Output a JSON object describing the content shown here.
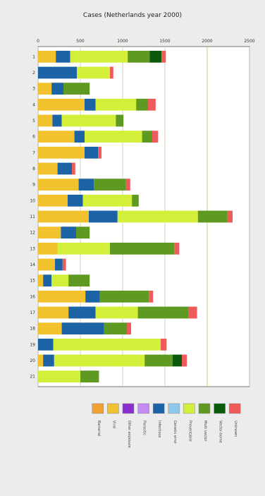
{
  "chart_data": {
    "type": "bar",
    "stacked": true,
    "orientation": "horizontal",
    "title": "Cases (Netherlands year 2000)",
    "xlim": [
      0,
      2500
    ],
    "x_ticks": [
      0,
      500,
      1000,
      1500,
      2000,
      2500
    ],
    "grid": true,
    "categories": [
      "1",
      "2",
      "3",
      "4",
      "5",
      "6",
      "7",
      "8",
      "9",
      "10",
      "11",
      "12",
      "13",
      "14",
      "15",
      "16",
      "17",
      "18",
      "19",
      "20",
      "21"
    ],
    "series": [
      {
        "name": "Bacterial",
        "color": "#f2a032",
        "values": [
          0,
          0,
          0,
          0,
          0,
          0,
          0,
          0,
          0,
          0,
          0,
          0,
          0,
          0,
          0,
          0,
          0,
          0,
          0,
          0,
          0
        ]
      },
      {
        "name": "Viral",
        "color": "#f2c12e",
        "values": [
          210,
          0,
          160,
          550,
          170,
          430,
          550,
          230,
          480,
          350,
          600,
          270,
          230,
          200,
          60,
          560,
          360,
          280,
          0,
          60,
          0
        ]
      },
      {
        "name": "Other exposure",
        "color": "#8b2fcf",
        "values": [
          0,
          0,
          0,
          0,
          0,
          0,
          0,
          0,
          0,
          0,
          0,
          0,
          0,
          0,
          0,
          0,
          0,
          0,
          0,
          0,
          0
        ]
      },
      {
        "name": "Parasitic",
        "color": "#c48cf2",
        "values": [
          0,
          0,
          0,
          0,
          0,
          0,
          0,
          0,
          0,
          0,
          0,
          0,
          0,
          0,
          0,
          0,
          0,
          0,
          0,
          0,
          0
        ]
      },
      {
        "name": "Infectious",
        "color": "#1c63a6",
        "values": [
          170,
          460,
          140,
          130,
          110,
          120,
          160,
          170,
          180,
          180,
          340,
          180,
          0,
          90,
          100,
          170,
          320,
          500,
          180,
          130,
          0
        ]
      },
      {
        "name": "Genetic error",
        "color": "#8ec8ec",
        "values": [
          0,
          0,
          0,
          0,
          0,
          0,
          0,
          0,
          0,
          0,
          0,
          0,
          0,
          0,
          0,
          0,
          0,
          0,
          0,
          0,
          0
        ]
      },
      {
        "name": "Preventable",
        "color": "#d4ef3a",
        "values": [
          680,
          390,
          0,
          480,
          640,
          680,
          0,
          0,
          0,
          580,
          950,
          0,
          620,
          0,
          200,
          0,
          500,
          0,
          1270,
          1070,
          500
        ]
      },
      {
        "name": "Multi vector",
        "color": "#5e9921",
        "values": [
          260,
          0,
          310,
          140,
          90,
          120,
          0,
          0,
          380,
          80,
          350,
          160,
          760,
          0,
          250,
          580,
          600,
          270,
          0,
          330,
          220
        ]
      },
      {
        "name": "Vector-borne",
        "color": "#0b5a0b",
        "values": [
          140,
          0,
          0,
          0,
          0,
          0,
          0,
          0,
          0,
          0,
          0,
          0,
          0,
          0,
          0,
          0,
          0,
          0,
          0,
          110,
          0
        ]
      },
      {
        "name": "Unknown",
        "color": "#ef5b5b",
        "values": [
          50,
          40,
          0,
          90,
          0,
          70,
          40,
          40,
          50,
          0,
          60,
          0,
          60,
          40,
          0,
          50,
          100,
          50,
          70,
          60,
          0
        ]
      }
    ]
  }
}
